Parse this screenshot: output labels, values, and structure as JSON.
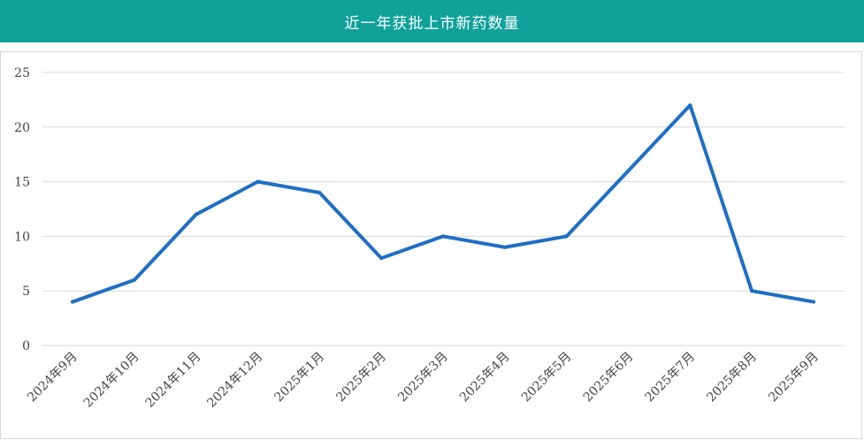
{
  "header": {
    "title": "近一年获批上市新药数量"
  },
  "colors": {
    "header_bg": "#10a19a",
    "line": "#1f6fc5",
    "grid": "#d9d9d9"
  },
  "chart_data": {
    "type": "line",
    "title": "近一年获批上市新药数量",
    "xlabel": "",
    "ylabel": "",
    "categories": [
      "2024年9月",
      "2024年10月",
      "2024年11月",
      "2024年12月",
      "2025年1月",
      "2025年2月",
      "2025年3月",
      "2025年4月",
      "2025年5月",
      "2025年6月",
      "2025年7月",
      "2025年8月",
      "2025年9月"
    ],
    "values": [
      4,
      6,
      12,
      15,
      14,
      8,
      10,
      9,
      10,
      16,
      22,
      5,
      4
    ],
    "ylim": [
      0,
      25
    ],
    "yticks": [
      0,
      5,
      10,
      15,
      20,
      25
    ],
    "grid": true,
    "legend": "none"
  }
}
